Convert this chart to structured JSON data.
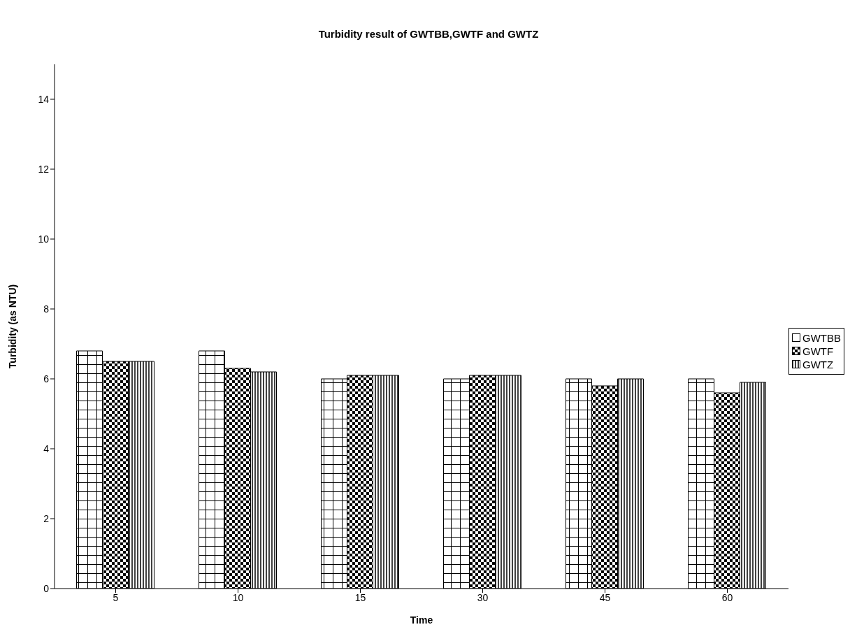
{
  "chart_data": {
    "type": "bar",
    "title": "Turbidity result of GWTBB,GWTF and GWTZ",
    "xlabel": "Time",
    "ylabel": "Turbidity (as NTU)",
    "categories": [
      "5",
      "10",
      "15",
      "30",
      "45",
      "60"
    ],
    "series": [
      {
        "name": "GWTBB",
        "color": "#000000",
        "values": [
          6.8,
          6.8,
          6.0,
          6.0,
          6.0,
          6.0
        ]
      },
      {
        "name": "GWTF",
        "color": "#000000",
        "values": [
          6.5,
          6.3,
          6.1,
          6.1,
          5.8,
          5.6
        ]
      },
      {
        "name": "GWTZ",
        "color": "#000000",
        "values": [
          6.5,
          6.2,
          6.1,
          6.1,
          6.0,
          5.9
        ]
      }
    ],
    "ylim": [
      0,
      15
    ],
    "yticks": [
      0,
      2,
      4,
      6,
      8,
      10,
      12,
      14
    ],
    "grid": false,
    "legend": "right"
  }
}
